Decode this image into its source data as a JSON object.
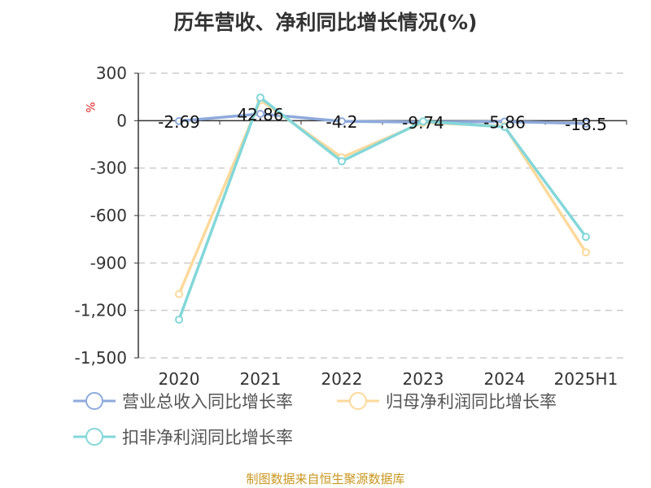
{
  "title": "历年营收、净利同比增长情况(%)",
  "source": "制图数据来自恒生聚源数据库",
  "chart_data": {
    "type": "line",
    "title": "历年营收、净利同比增长情况(%)",
    "ylabel": "%",
    "ylim": [
      -1500,
      300
    ],
    "yticks": [
      300,
      0,
      -300,
      -600,
      -900,
      -1200,
      -1500
    ],
    "ytick_labels": [
      "300",
      "0",
      "-300",
      "-600",
      "-900",
      "-1,200",
      "-1,500"
    ],
    "categories": [
      "2020",
      "2021",
      "2022",
      "2023",
      "2024",
      "2025H1"
    ],
    "grid": true,
    "legend_position": "bottom",
    "series": [
      {
        "name": "营业总收入同比增长率",
        "color": "#8eaadc",
        "values": [
          -2.69,
          42.86,
          -4.2,
          -9.74,
          -5.86,
          -18.5
        ],
        "labels": [
          "-2.69",
          "42.86",
          "-4.2",
          "-9.74",
          "-5.86",
          "-18.5"
        ]
      },
      {
        "name": "归母净利润同比增长率",
        "color": "#fdd99b",
        "values": [
          -1097,
          130,
          -232,
          -12,
          -35,
          -833
        ]
      },
      {
        "name": "扣非净利润同比增长率",
        "color": "#83d7d9",
        "values": [
          -1258,
          146,
          -257,
          -5,
          -40,
          -735
        ]
      }
    ]
  }
}
